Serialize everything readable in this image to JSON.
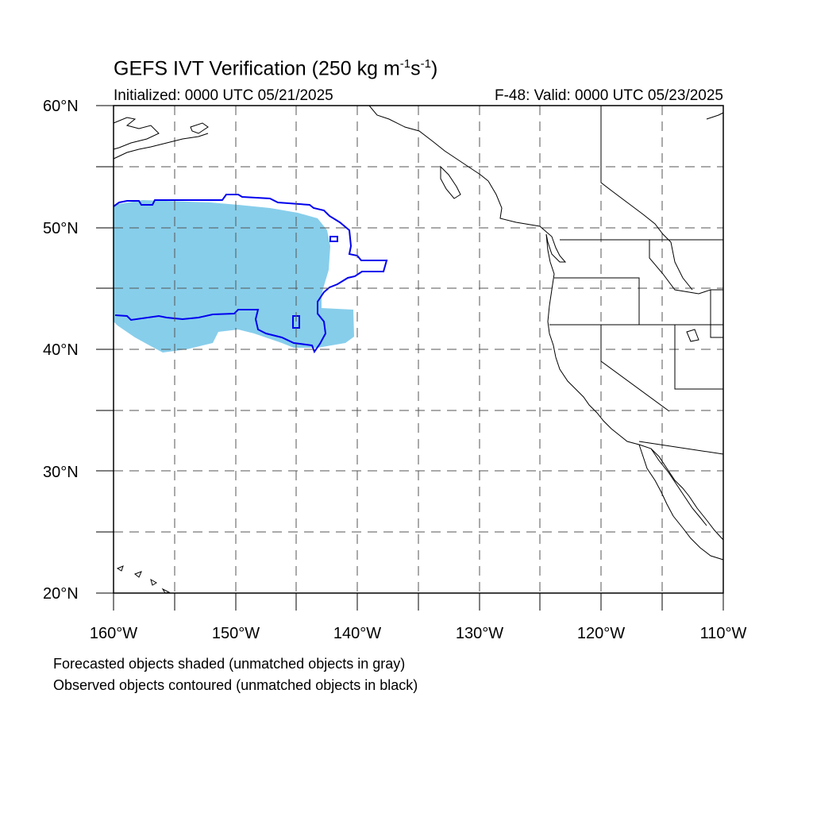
{
  "header": {
    "title_main": "GEFS IVT Verification (250 kg m",
    "title_sup1": "-1",
    "title_mid": "s",
    "title_sup2": "-1",
    "title_end": ")",
    "initialized": "Initialized: 0000 UTC 05/21/2025",
    "valid": "F-48: Valid: 0000 UTC 05/23/2025"
  },
  "axes": {
    "lat_labels": [
      "60°N",
      "50°N",
      "40°N",
      "30°N",
      "20°N"
    ],
    "lon_labels": [
      "160°W",
      "150°W",
      "140°W",
      "130°W",
      "120°W",
      "110°W"
    ],
    "lat_range": [
      20,
      60
    ],
    "lon_range": [
      -160,
      -110
    ],
    "grid": "dashed, every 5 degrees"
  },
  "legend_notes": {
    "line1": "Forecasted objects shaded (unmatched objects in gray)",
    "line2": "Observed objects contoured (unmatched objects in black)"
  },
  "colors": {
    "forecast_fill": "#87ceeb",
    "observed_contour": "#0000ee",
    "coastline": "#000000",
    "grid": "#555555"
  }
}
